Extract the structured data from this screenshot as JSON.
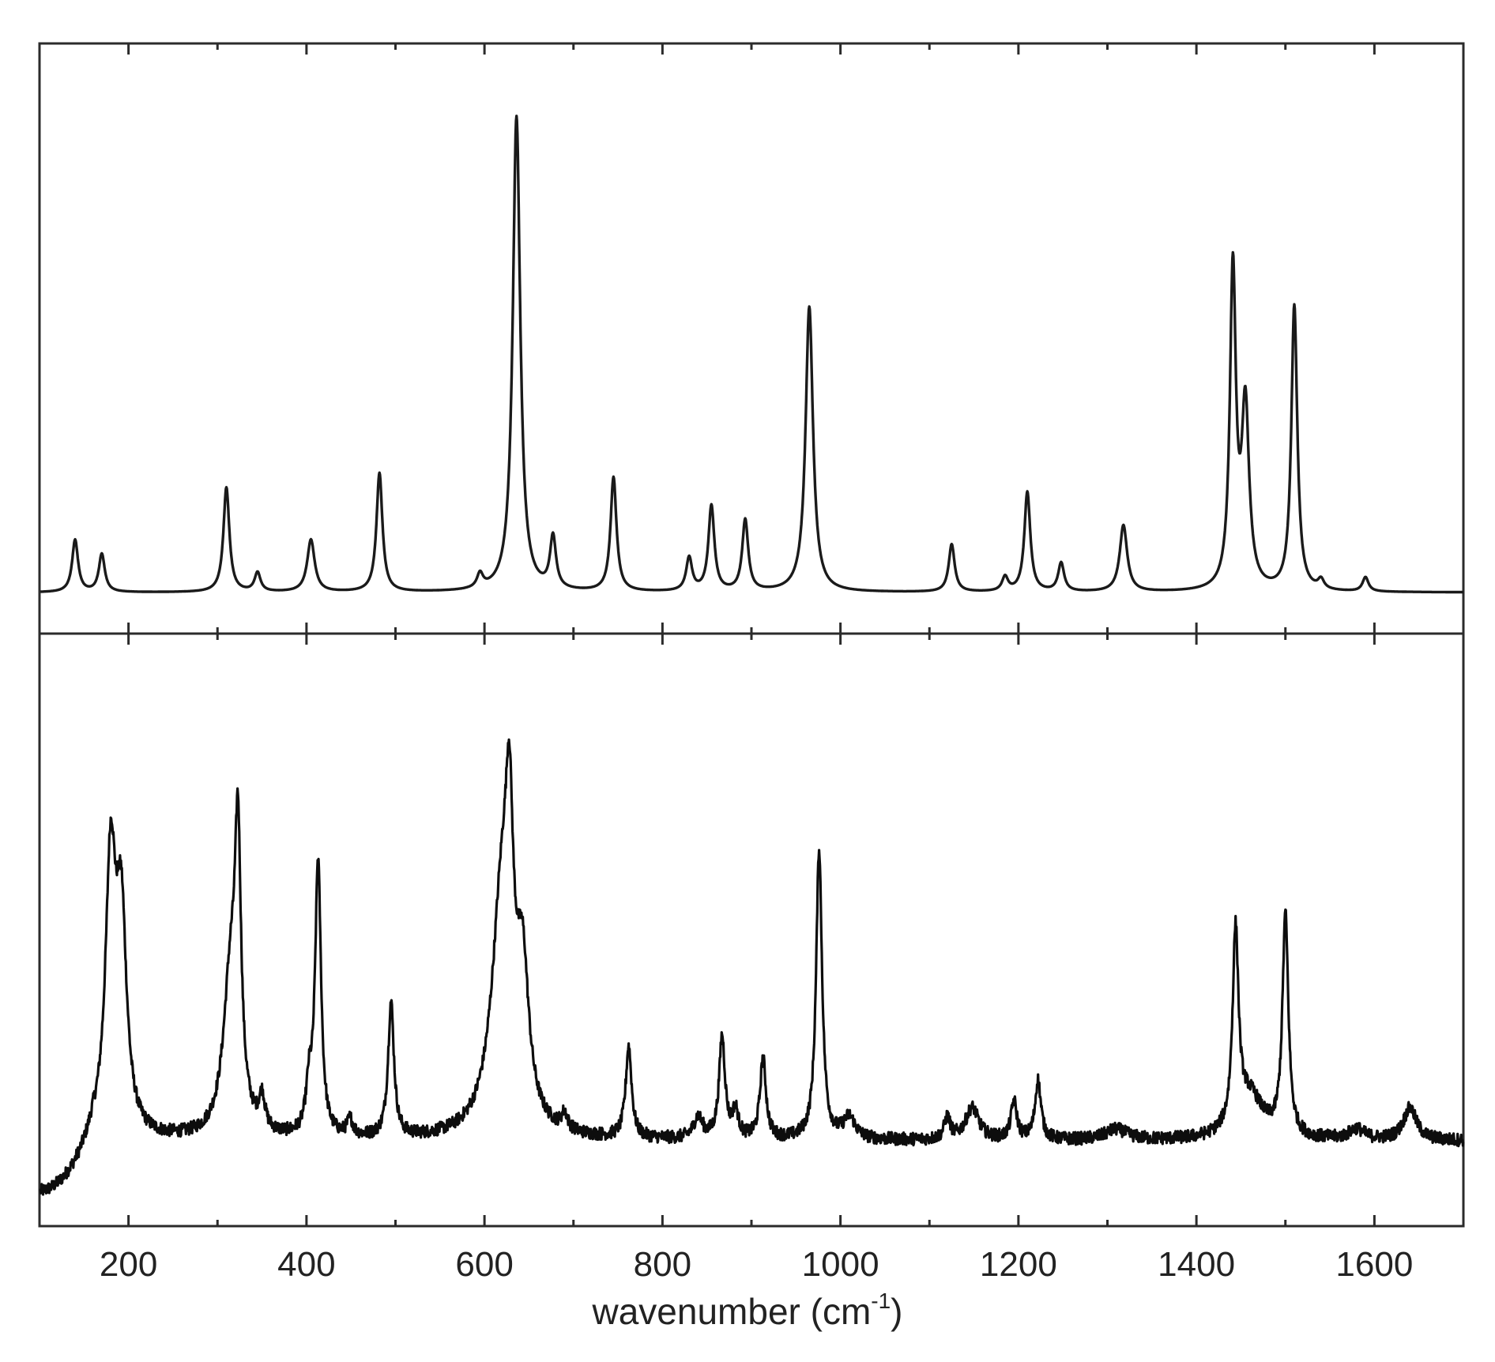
{
  "chart_data": [
    {
      "panel": "top",
      "type": "line",
      "title": "",
      "xlabel": "",
      "ylabel": "",
      "xlim": [
        100,
        1700
      ],
      "ylim": [
        0,
        1.08
      ],
      "baseline": 0.0,
      "noise": 0,
      "grid": false,
      "color": "#1a1a1a",
      "peaks": [
        {
          "x": 140,
          "y": 0.11,
          "w": 4
        },
        {
          "x": 170,
          "y": 0.08,
          "w": 4
        },
        {
          "x": 310,
          "y": 0.22,
          "w": 4
        },
        {
          "x": 345,
          "y": 0.04,
          "w": 4
        },
        {
          "x": 405,
          "y": 0.11,
          "w": 5
        },
        {
          "x": 482,
          "y": 0.25,
          "w": 4
        },
        {
          "x": 595,
          "y": 0.03,
          "w": 4
        },
        {
          "x": 636,
          "y": 1.0,
          "w": 5
        },
        {
          "x": 677,
          "y": 0.11,
          "w": 4
        },
        {
          "x": 745,
          "y": 0.24,
          "w": 4
        },
        {
          "x": 830,
          "y": 0.07,
          "w": 4
        },
        {
          "x": 855,
          "y": 0.18,
          "w": 4
        },
        {
          "x": 893,
          "y": 0.15,
          "w": 4
        },
        {
          "x": 965,
          "y": 0.6,
          "w": 5
        },
        {
          "x": 1125,
          "y": 0.1,
          "w": 4
        },
        {
          "x": 1185,
          "y": 0.03,
          "w": 4
        },
        {
          "x": 1210,
          "y": 0.21,
          "w": 4
        },
        {
          "x": 1248,
          "y": 0.06,
          "w": 4
        },
        {
          "x": 1318,
          "y": 0.14,
          "w": 5
        },
        {
          "x": 1441,
          "y": 0.67,
          "w": 4
        },
        {
          "x": 1455,
          "y": 0.38,
          "w": 5
        },
        {
          "x": 1510,
          "y": 0.6,
          "w": 4
        },
        {
          "x": 1540,
          "y": 0.02,
          "w": 4
        },
        {
          "x": 1590,
          "y": 0.03,
          "w": 4
        }
      ],
      "noise_bumps": []
    },
    {
      "panel": "bottom",
      "type": "line",
      "title": "",
      "xlabel": "wavenumber (cm⁻¹)",
      "ylabel": "",
      "xlim": [
        100,
        1700
      ],
      "ylim": [
        0,
        1.0
      ],
      "baseline": 0.17,
      "noise": 0.012,
      "grid": false,
      "color": "#0d0d0d",
      "start_dip": {
        "x_end": 160,
        "y": 0.07
      },
      "peaks": [
        {
          "x": 180,
          "y": 0.5,
          "w": 7
        },
        {
          "x": 192,
          "y": 0.38,
          "w": 7
        },
        {
          "x": 315,
          "y": 0.3,
          "w": 10
        },
        {
          "x": 323,
          "y": 0.46,
          "w": 4
        },
        {
          "x": 350,
          "y": 0.06,
          "w": 4
        },
        {
          "x": 403,
          "y": 0.08,
          "w": 4
        },
        {
          "x": 413,
          "y": 0.51,
          "w": 4
        },
        {
          "x": 449,
          "y": 0.03,
          "w": 4
        },
        {
          "x": 495,
          "y": 0.25,
          "w": 4
        },
        {
          "x": 620,
          "y": 0.45,
          "w": 14
        },
        {
          "x": 628,
          "y": 0.35,
          "w": 5
        },
        {
          "x": 643,
          "y": 0.25,
          "w": 8
        },
        {
          "x": 690,
          "y": 0.03,
          "w": 4
        },
        {
          "x": 762,
          "y": 0.17,
          "w": 4
        },
        {
          "x": 840,
          "y": 0.04,
          "w": 6
        },
        {
          "x": 867,
          "y": 0.19,
          "w": 4
        },
        {
          "x": 882,
          "y": 0.05,
          "w": 4
        },
        {
          "x": 913,
          "y": 0.15,
          "w": 4
        },
        {
          "x": 976,
          "y": 0.54,
          "w": 4
        },
        {
          "x": 1010,
          "y": 0.04,
          "w": 8
        },
        {
          "x": 1120,
          "y": 0.04,
          "w": 4
        },
        {
          "x": 1148,
          "y": 0.06,
          "w": 9
        },
        {
          "x": 1195,
          "y": 0.07,
          "w": 4
        },
        {
          "x": 1222,
          "y": 0.11,
          "w": 4
        },
        {
          "x": 1310,
          "y": 0.02,
          "w": 15
        },
        {
          "x": 1444,
          "y": 0.36,
          "w": 4
        },
        {
          "x": 1460,
          "y": 0.08,
          "w": 18
        },
        {
          "x": 1500,
          "y": 0.41,
          "w": 4
        },
        {
          "x": 1580,
          "y": 0.02,
          "w": 10
        },
        {
          "x": 1640,
          "y": 0.06,
          "w": 9
        }
      ]
    }
  ],
  "axis": {
    "xtick_values": [
      200,
      400,
      600,
      800,
      1000,
      1200,
      1400,
      1600
    ],
    "xtick_labels": [
      "200",
      "400",
      "600",
      "800",
      "1000",
      "1200",
      "1400",
      "1600"
    ],
    "minor_ticks": [
      300,
      500,
      700,
      900,
      1100,
      1300,
      1500
    ],
    "xlabel_main": "wavenumber (cm",
    "xlabel_sup": "-1",
    "xlabel_close": ")"
  },
  "colors": {
    "frame": "#2b2b2b",
    "text": "#222222"
  }
}
